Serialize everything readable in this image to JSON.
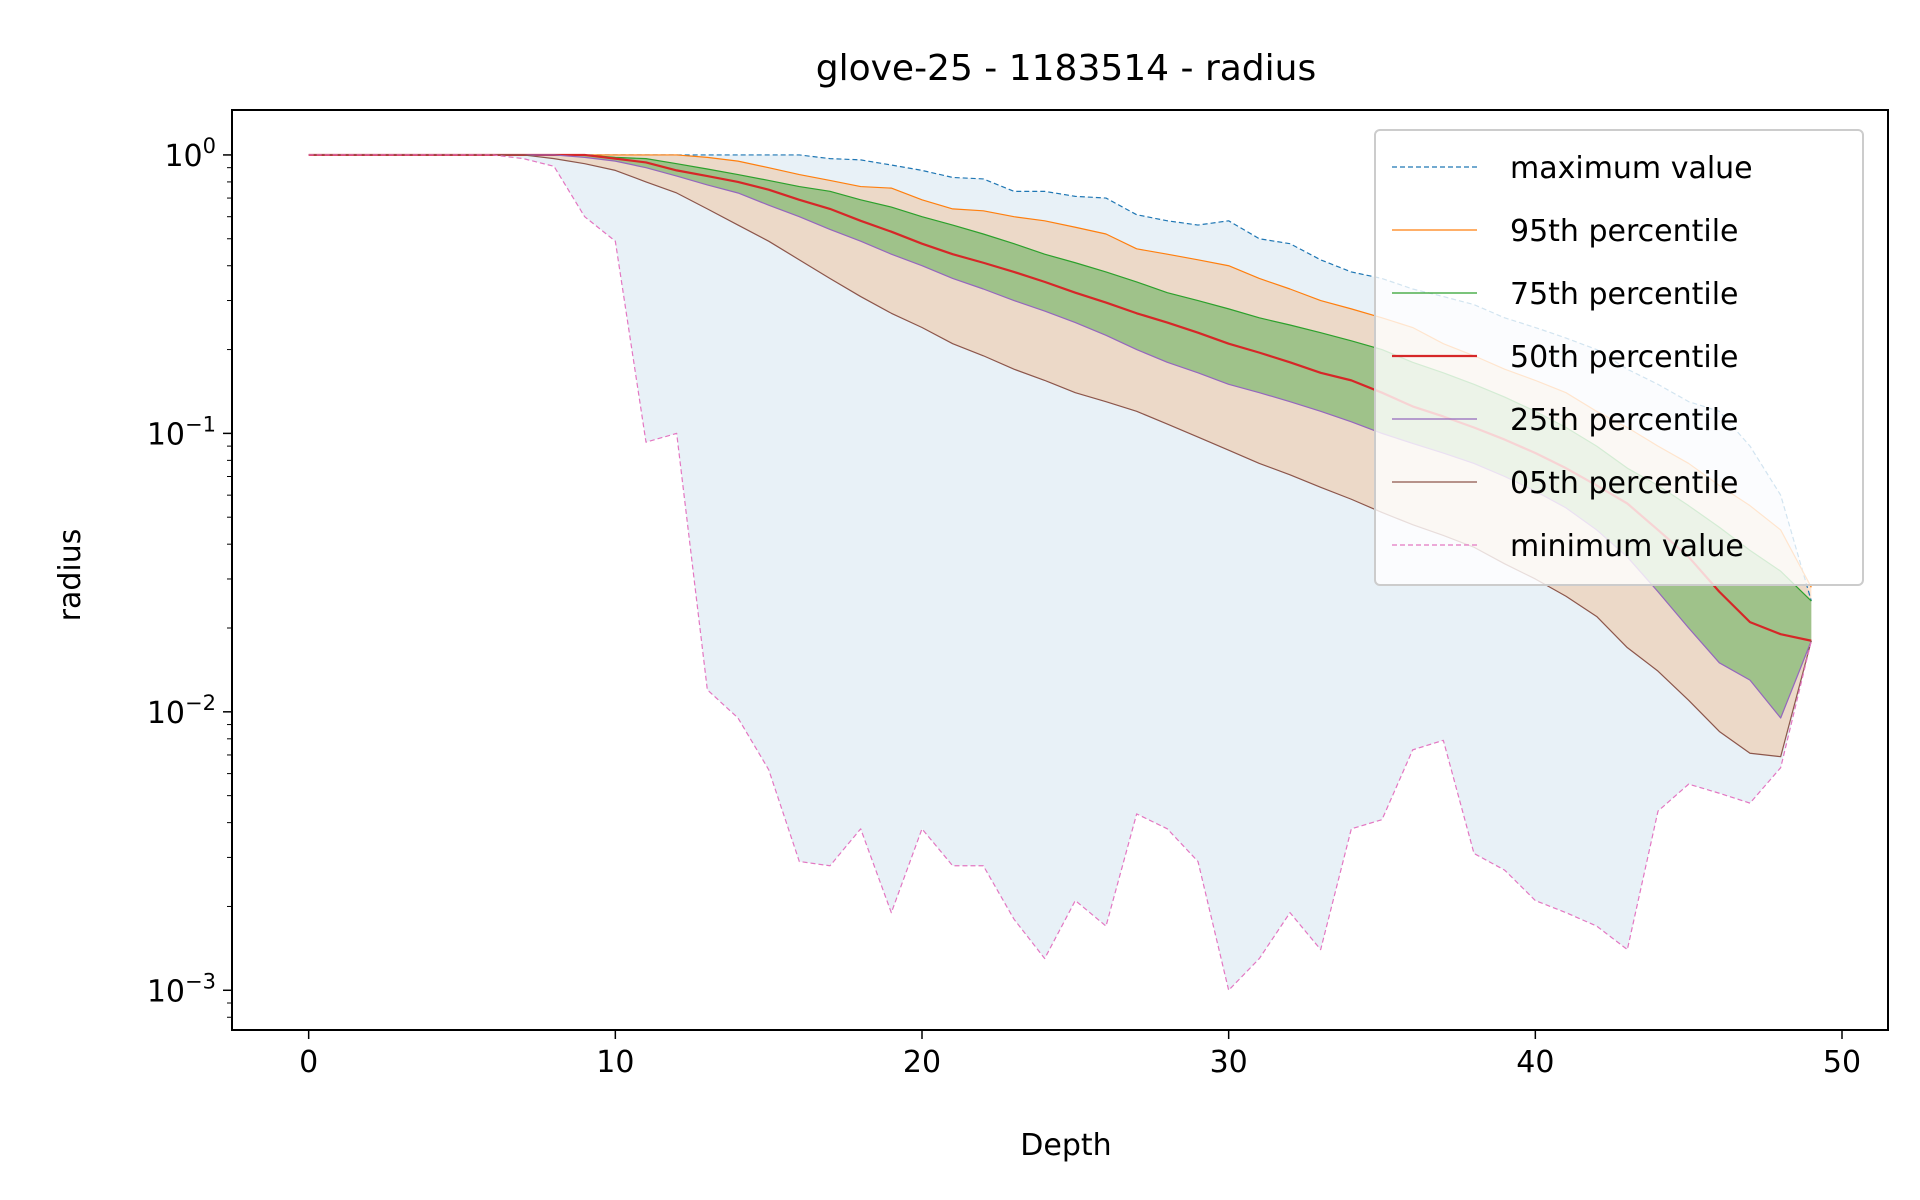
{
  "chart_data": {
    "type": "line",
    "title": "glove-25 - 1183514 - radius",
    "xlabel": "Depth",
    "ylabel": "radius",
    "yscale": "log",
    "xlim": [
      -2.5,
      51.5
    ],
    "ylim": [
      0.00072,
      1.45
    ],
    "x_ticks": [
      0,
      10,
      20,
      30,
      40,
      50
    ],
    "x_tick_labels": [
      "0",
      "10",
      "20",
      "30",
      "40",
      "50"
    ],
    "y_ticks": [
      1,
      0.1,
      0.01,
      0.001
    ],
    "y_tick_labels": [
      {
        "base": "10",
        "exp": "0"
      },
      {
        "base": "10",
        "exp": "−1"
      },
      {
        "base": "10",
        "exp": "−2"
      },
      {
        "base": "10",
        "exp": "−3"
      }
    ],
    "grid": false,
    "legend_position": "upper right",
    "x": [
      0,
      1,
      2,
      3,
      4,
      5,
      6,
      7,
      8,
      9,
      10,
      11,
      12,
      13,
      14,
      15,
      16,
      17,
      18,
      19,
      20,
      21,
      22,
      23,
      24,
      25,
      26,
      27,
      28,
      29,
      30,
      31,
      32,
      33,
      34,
      35,
      36,
      37,
      38,
      39,
      40,
      41,
      42,
      43,
      44,
      45,
      46,
      47,
      48,
      49
    ],
    "series": [
      {
        "name": "maximum value",
        "color": "#1f77b4",
        "dash": "dashed",
        "width": 1.2,
        "values": [
          1,
          1,
          1,
          1,
          1,
          1,
          1,
          1,
          1,
          1,
          1,
          1,
          1,
          1,
          1,
          1,
          1,
          0.97,
          0.96,
          0.92,
          0.88,
          0.83,
          0.82,
          0.74,
          0.74,
          0.71,
          0.7,
          0.61,
          0.58,
          0.56,
          0.58,
          0.5,
          0.48,
          0.42,
          0.38,
          0.36,
          0.33,
          0.31,
          0.29,
          0.26,
          0.24,
          0.22,
          0.2,
          0.17,
          0.15,
          0.13,
          0.12,
          0.09,
          0.06,
          0.025
        ]
      },
      {
        "name": "95th percentile",
        "color": "#ff7f0e",
        "dash": "solid",
        "width": 1.2,
        "values": [
          1,
          1,
          1,
          1,
          1,
          1,
          1,
          1,
          1,
          1,
          1,
          1,
          1,
          0.98,
          0.95,
          0.9,
          0.85,
          0.81,
          0.77,
          0.76,
          0.69,
          0.64,
          0.63,
          0.6,
          0.58,
          0.55,
          0.52,
          0.46,
          0.44,
          0.42,
          0.4,
          0.36,
          0.33,
          0.3,
          0.28,
          0.26,
          0.24,
          0.21,
          0.19,
          0.17,
          0.155,
          0.14,
          0.12,
          0.105,
          0.09,
          0.078,
          0.065,
          0.055,
          0.045,
          0.028
        ]
      },
      {
        "name": "75th percentile",
        "color": "#2ca02c",
        "dash": "solid",
        "width": 1.2,
        "values": [
          1,
          1,
          1,
          1,
          1,
          1,
          1,
          1,
          1,
          1,
          0.98,
          0.97,
          0.93,
          0.89,
          0.85,
          0.81,
          0.77,
          0.74,
          0.69,
          0.65,
          0.6,
          0.56,
          0.52,
          0.48,
          0.44,
          0.41,
          0.38,
          0.35,
          0.32,
          0.3,
          0.28,
          0.26,
          0.245,
          0.23,
          0.215,
          0.2,
          0.18,
          0.165,
          0.15,
          0.135,
          0.12,
          0.105,
          0.09,
          0.075,
          0.065,
          0.055,
          0.046,
          0.038,
          0.032,
          0.025
        ]
      },
      {
        "name": "50th percentile",
        "color": "#d62728",
        "dash": "solid",
        "width": 2.2,
        "values": [
          1,
          1,
          1,
          1,
          1,
          1,
          1,
          1,
          1,
          1,
          0.97,
          0.94,
          0.88,
          0.84,
          0.8,
          0.75,
          0.69,
          0.64,
          0.58,
          0.53,
          0.48,
          0.44,
          0.41,
          0.38,
          0.35,
          0.32,
          0.295,
          0.27,
          0.25,
          0.23,
          0.21,
          0.195,
          0.18,
          0.165,
          0.155,
          0.14,
          0.125,
          0.115,
          0.105,
          0.095,
          0.085,
          0.075,
          0.065,
          0.056,
          0.045,
          0.036,
          0.027,
          0.021,
          0.019,
          0.018
        ]
      },
      {
        "name": "25th percentile",
        "color": "#9467bd",
        "dash": "solid",
        "width": 1.2,
        "values": [
          1,
          1,
          1,
          1,
          1,
          1,
          1,
          1,
          1,
          0.98,
          0.95,
          0.9,
          0.84,
          0.78,
          0.73,
          0.66,
          0.6,
          0.54,
          0.49,
          0.44,
          0.4,
          0.36,
          0.33,
          0.3,
          0.275,
          0.25,
          0.225,
          0.2,
          0.18,
          0.165,
          0.15,
          0.14,
          0.13,
          0.12,
          0.11,
          0.1,
          0.092,
          0.085,
          0.078,
          0.07,
          0.062,
          0.054,
          0.045,
          0.036,
          0.027,
          0.02,
          0.015,
          0.013,
          0.0095,
          0.018
        ]
      },
      {
        "name": "05th percentile",
        "color": "#8c564b",
        "dash": "solid",
        "width": 1.2,
        "values": [
          1,
          1,
          1,
          1,
          1,
          1,
          1,
          1,
          0.97,
          0.93,
          0.88,
          0.8,
          0.73,
          0.64,
          0.56,
          0.49,
          0.42,
          0.36,
          0.31,
          0.27,
          0.24,
          0.21,
          0.19,
          0.17,
          0.155,
          0.14,
          0.13,
          0.12,
          0.108,
          0.097,
          0.087,
          0.078,
          0.071,
          0.064,
          0.058,
          0.052,
          0.047,
          0.043,
          0.039,
          0.034,
          0.03,
          0.026,
          0.022,
          0.017,
          0.014,
          0.011,
          0.0085,
          0.0071,
          0.0069,
          0.018
        ]
      },
      {
        "name": "minimum value",
        "color": "#e377c2",
        "dash": "dashed",
        "width": 1.2,
        "values": [
          1,
          1,
          1,
          1,
          1,
          1,
          1,
          0.97,
          0.91,
          0.6,
          0.49,
          0.093,
          0.1,
          0.012,
          0.0095,
          0.0062,
          0.0029,
          0.0028,
          0.0038,
          0.0019,
          0.0038,
          0.0028,
          0.0028,
          0.0018,
          0.0013,
          0.0021,
          0.0017,
          0.0043,
          0.0038,
          0.0029,
          0.001,
          0.0013,
          0.0019,
          0.0014,
          0.0038,
          0.0041,
          0.0073,
          0.0079,
          0.0031,
          0.0027,
          0.0021,
          0.0019,
          0.0017,
          0.0014,
          0.0044,
          0.0055,
          0.0051,
          0.0047,
          0.0063,
          0.018
        ]
      }
    ],
    "bands": [
      {
        "between": [
          "maximum value",
          "minimum value"
        ],
        "color": "#1f77b4",
        "opacity": 0.1
      },
      {
        "between": [
          "95th percentile",
          "05th percentile"
        ],
        "color": "#ff7f0e",
        "opacity": 0.2
      },
      {
        "between": [
          "75th percentile",
          "25th percentile"
        ],
        "color": "#2ca02c",
        "opacity": 0.4
      }
    ]
  }
}
